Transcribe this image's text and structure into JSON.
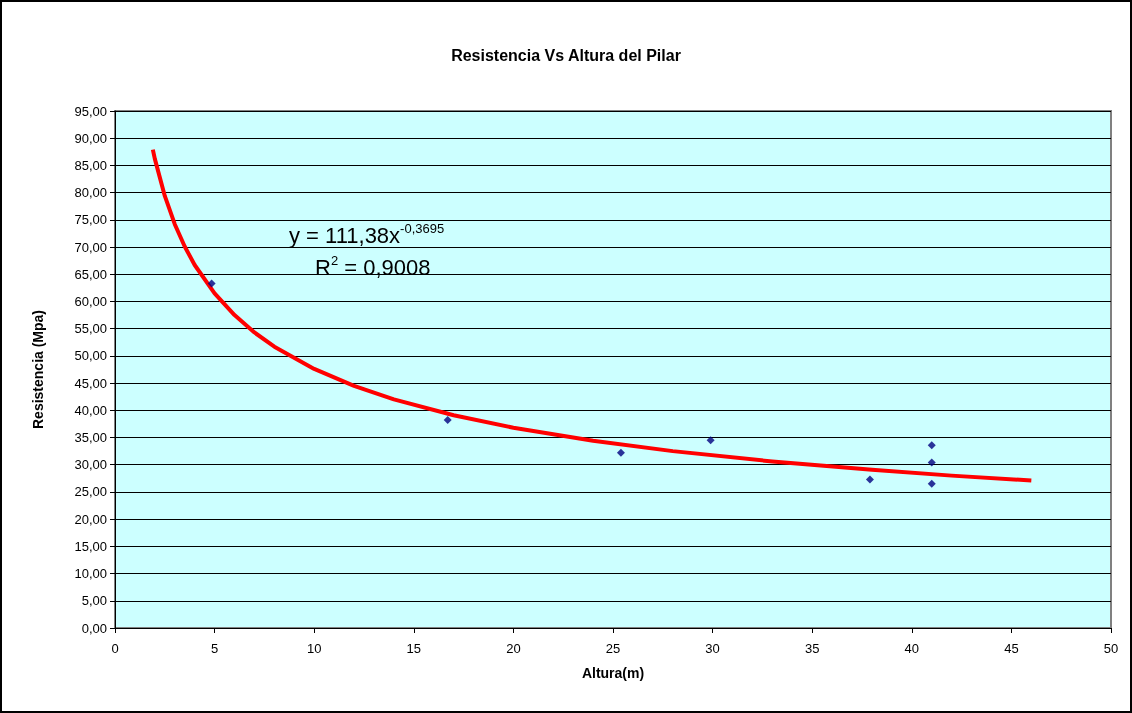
{
  "chart_data": {
    "type": "scatter",
    "title": "Resistencia Vs Altura del Pilar",
    "xlabel": "Altura(m)",
    "ylabel": "Resistencia (Mpa)",
    "annotations": [
      "y = 111,38x$^{-0,3695}$",
      "R$^{2}$ = 0,9008"
    ],
    "series": [
      {
        "color": "#000080",
        "x": [
          4.85,
          16.7,
          25.4,
          29.9,
          37.9,
          41,
          41,
          41
        ],
        "values": [
          63.3,
          38.2,
          32.2,
          34.5,
          27.3,
          33.6,
          30.4,
          26.5
        ]
      },
      {
        "type": "line",
        "marker": "none",
        "color": "#ff0000",
        "x": [
          1.9,
          2,
          2.5,
          3,
          3.5,
          4,
          5,
          6,
          7,
          8,
          10,
          12,
          14,
          17,
          20,
          24,
          28,
          33,
          38,
          42,
          46
        ],
        "values": [
          87.9,
          86.2,
          79.4,
          74.2,
          70.1,
          66.7,
          61.5,
          57.5,
          54.3,
          51.7,
          47.6,
          44.5,
          42.0,
          39.1,
          36.8,
          34.4,
          32.5,
          30.6,
          29.1,
          28.0,
          27.1
        ]
      }
    ],
    "xlim": [
      0,
      50
    ],
    "xticks": [
      0,
      5,
      10,
      15,
      20,
      25,
      30,
      35,
      40,
      45,
      50
    ],
    "ylim": [
      0,
      95
    ],
    "yticks": [
      {
        "value": 0,
        "label": "0,00"
      },
      {
        "value": 5,
        "label": "5,00"
      },
      {
        "value": 10,
        "label": "10,00"
      },
      {
        "value": 15,
        "label": "15,00"
      },
      {
        "value": 20,
        "label": "20,00"
      },
      {
        "value": 25,
        "label": "25,00"
      },
      {
        "value": 30,
        "label": "30,00"
      },
      {
        "value": 35,
        "label": "35,00"
      },
      {
        "value": 40,
        "label": "40,00"
      },
      {
        "value": 45,
        "label": "45,00"
      },
      {
        "value": 50,
        "label": "50,00"
      },
      {
        "value": 55,
        "label": "55,00"
      },
      {
        "value": 60,
        "label": "60,00"
      },
      {
        "value": 65,
        "label": "65,00"
      },
      {
        "value": 70,
        "label": "70,00"
      },
      {
        "value": 75,
        "label": "75,00"
      },
      {
        "value": 80,
        "label": "80,00"
      },
      {
        "value": 85,
        "label": "85,00"
      },
      {
        "value": 90,
        "label": "90,00"
      },
      {
        "value": 95,
        "label": "95,00"
      }
    ],
    "grid": "y",
    "marker": "diamond"
  }
}
